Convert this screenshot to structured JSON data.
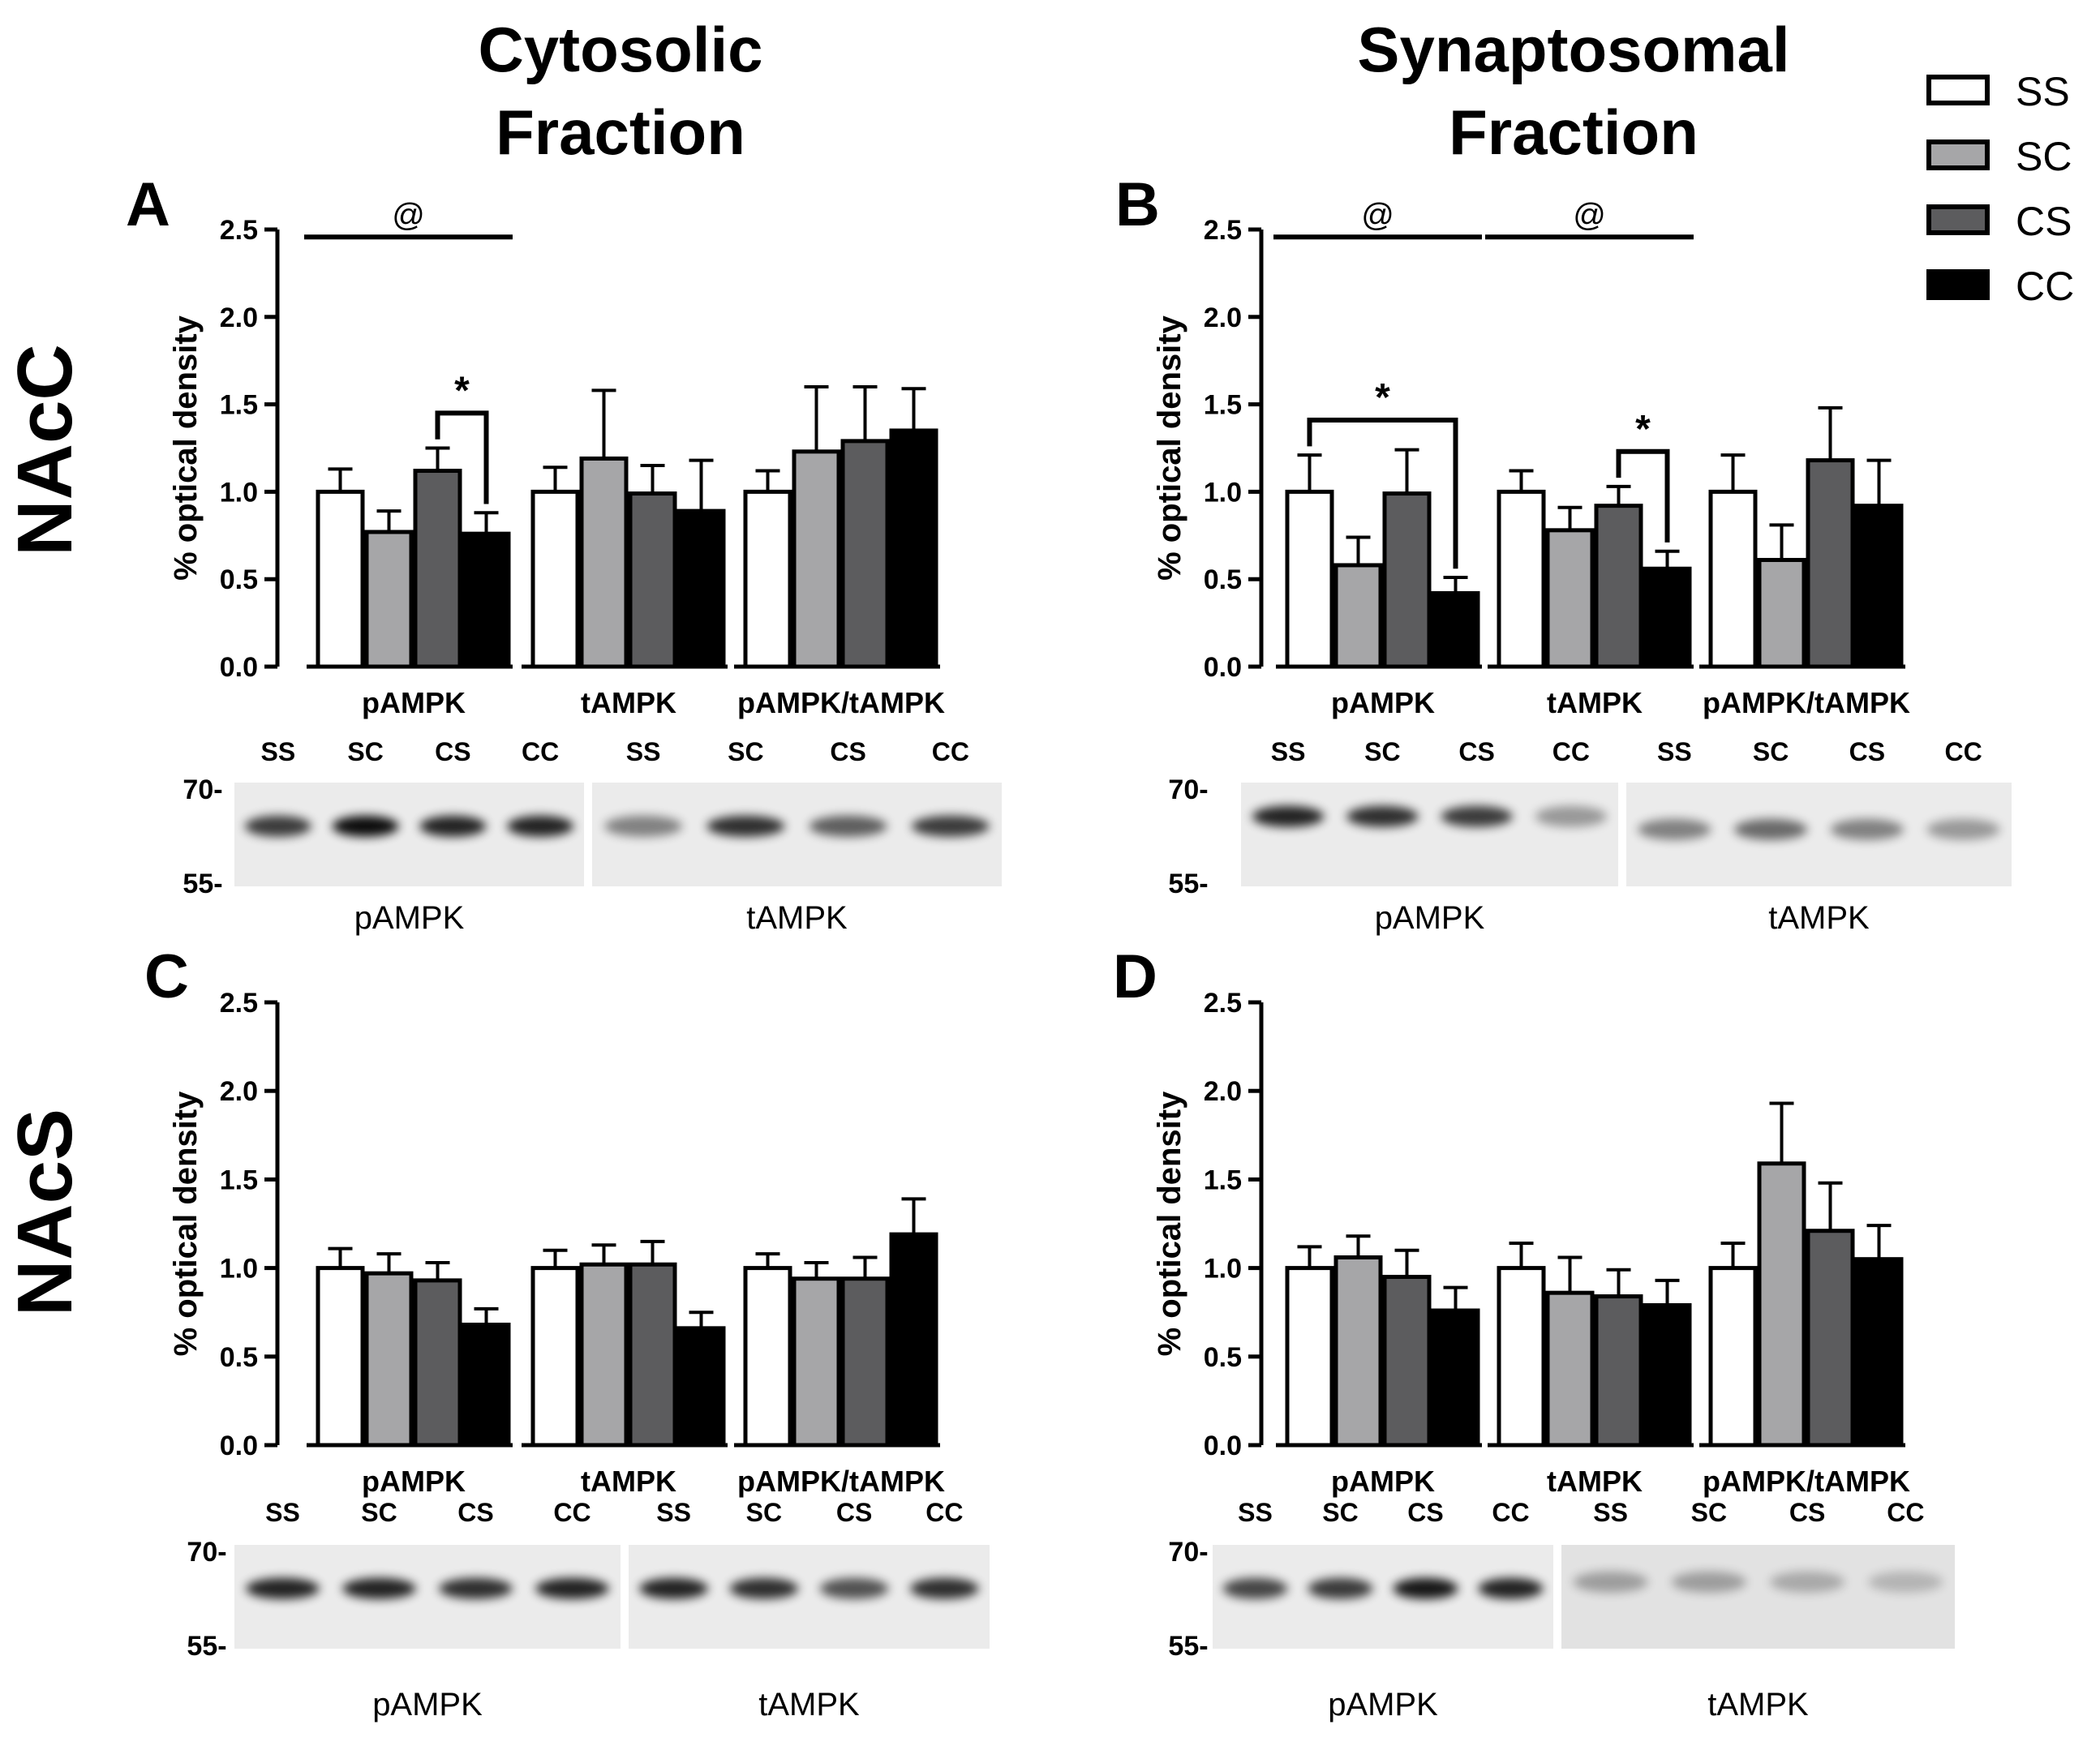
{
  "column_titles": [
    {
      "line1": "Cytosolic",
      "line2": "Fraction"
    },
    {
      "line1": "Synaptosomal",
      "line2": "Fraction"
    }
  ],
  "row_labels": [
    "NAcC",
    "NAcS"
  ],
  "legend": [
    {
      "label": "SS",
      "color": "#ffffff"
    },
    {
      "label": "SC",
      "color": "#a6a6a8"
    },
    {
      "label": "CS",
      "color": "#5c5c5e"
    },
    {
      "label": "CC",
      "color": "#000000"
    }
  ],
  "chart_data": [
    {
      "panel": "A",
      "type": "bar",
      "ylabel": "% optical density",
      "ylim": [
        0,
        2.5
      ],
      "yticks": [
        "0.0",
        "0.5",
        "1.0",
        "1.5",
        "2.0",
        "2.5"
      ],
      "categories": [
        "pAMPK",
        "tAMPK",
        "pAMPK/tAMPK"
      ],
      "series": [
        {
          "name": "SS",
          "values": [
            1.0,
            1.0,
            1.0
          ],
          "errors": [
            0.13,
            0.14,
            0.12
          ]
        },
        {
          "name": "SC",
          "values": [
            0.77,
            1.19,
            1.23
          ],
          "errors": [
            0.12,
            0.39,
            0.37
          ]
        },
        {
          "name": "CS",
          "values": [
            1.12,
            0.99,
            1.29
          ],
          "errors": [
            0.13,
            0.16,
            0.31
          ]
        },
        {
          "name": "CC",
          "values": [
            0.76,
            0.89,
            1.35
          ],
          "errors": [
            0.12,
            0.29,
            0.24
          ]
        }
      ],
      "annotations": [
        {
          "symbol": "@",
          "from_group": 0,
          "to_group": 0
        },
        {
          "symbol": "*",
          "group": 0,
          "from_series": 2,
          "to_series": 3
        }
      ],
      "blot": {
        "lanes_left": [
          "SS",
          "SC",
          "CS",
          "CC"
        ],
        "lanes_right": [
          "SS",
          "SC",
          "CS",
          "CC"
        ],
        "mw_top": "70-",
        "mw_bottom": "55-",
        "label_left": "pAMPK",
        "label_right": "tAMPK"
      }
    },
    {
      "panel": "B",
      "type": "bar",
      "ylabel": "% optical density",
      "ylim": [
        0,
        2.5
      ],
      "yticks": [
        "0.0",
        "0.5",
        "1.0",
        "1.5",
        "2.0",
        "2.5"
      ],
      "categories": [
        "pAMPK",
        "tAMPK",
        "pAMPK/tAMPK"
      ],
      "series": [
        {
          "name": "SS",
          "values": [
            1.0,
            1.0,
            1.0
          ],
          "errors": [
            0.21,
            0.12,
            0.21
          ]
        },
        {
          "name": "SC",
          "values": [
            0.58,
            0.78,
            0.61
          ],
          "errors": [
            0.16,
            0.13,
            0.2
          ]
        },
        {
          "name": "CS",
          "values": [
            0.99,
            0.92,
            1.18
          ],
          "errors": [
            0.25,
            0.11,
            0.3
          ]
        },
        {
          "name": "CC",
          "values": [
            0.42,
            0.56,
            0.92
          ],
          "errors": [
            0.09,
            0.1,
            0.26
          ]
        }
      ],
      "annotations": [
        {
          "symbol": "@",
          "from_group": 0,
          "to_group": 0
        },
        {
          "symbol": "@",
          "from_group": 1,
          "to_group": 1
        },
        {
          "symbol": "*",
          "group": 0,
          "from_series": 0,
          "to_series": 3
        },
        {
          "symbol": "*",
          "group": 1,
          "from_series": 2,
          "to_series": 3
        }
      ],
      "blot": {
        "lanes_left": [
          "SS",
          "SC",
          "CS",
          "CC"
        ],
        "lanes_right": [
          "SS",
          "SC",
          "CS",
          "CC"
        ],
        "mw_top": "70-",
        "mw_bottom": "55-",
        "label_left": "pAMPK",
        "label_right": "tAMPK"
      }
    },
    {
      "panel": "C",
      "type": "bar",
      "ylabel": "% optical density",
      "ylim": [
        0,
        2.5
      ],
      "yticks": [
        "0.0",
        "0.5",
        "1.0",
        "1.5",
        "2.0",
        "2.5"
      ],
      "categories": [
        "pAMPK",
        "tAMPK",
        "pAMPK/tAMPK"
      ],
      "series": [
        {
          "name": "SS",
          "values": [
            1.0,
            1.0,
            1.0
          ],
          "errors": [
            0.11,
            0.1,
            0.08
          ]
        },
        {
          "name": "SC",
          "values": [
            0.97,
            1.02,
            0.94
          ],
          "errors": [
            0.11,
            0.11,
            0.09
          ]
        },
        {
          "name": "CS",
          "values": [
            0.93,
            1.02,
            0.94
          ],
          "errors": [
            0.1,
            0.13,
            0.12
          ]
        },
        {
          "name": "CC",
          "values": [
            0.68,
            0.66,
            1.19
          ],
          "errors": [
            0.09,
            0.09,
            0.2
          ]
        }
      ],
      "annotations": [],
      "blot": {
        "lanes_left": [
          "SS",
          "SC",
          "CS",
          "CC"
        ],
        "lanes_right": [
          "SS",
          "SC",
          "CS",
          "CC"
        ],
        "mw_top": "70-",
        "mw_bottom": "55-",
        "label_left": "pAMPK",
        "label_right": "tAMPK"
      }
    },
    {
      "panel": "D",
      "type": "bar",
      "ylabel": "% optical density",
      "ylim": [
        0,
        2.5
      ],
      "yticks": [
        "0.0",
        "0.5",
        "1.0",
        "1.5",
        "2.0",
        "2.5"
      ],
      "categories": [
        "pAMPK",
        "tAMPK",
        "pAMPK/tAMPK"
      ],
      "series": [
        {
          "name": "SS",
          "values": [
            1.0,
            1.0,
            1.0
          ],
          "errors": [
            0.12,
            0.14,
            0.14
          ]
        },
        {
          "name": "SC",
          "values": [
            1.06,
            0.86,
            1.59
          ],
          "errors": [
            0.12,
            0.2,
            0.34
          ]
        },
        {
          "name": "CS",
          "values": [
            0.95,
            0.84,
            1.21
          ],
          "errors": [
            0.15,
            0.15,
            0.27
          ]
        },
        {
          "name": "CC",
          "values": [
            0.76,
            0.79,
            1.05
          ],
          "errors": [
            0.13,
            0.14,
            0.19
          ]
        }
      ],
      "annotations": [],
      "blot": {
        "lanes_left": [
          "SS",
          "SC",
          "CS",
          "CC"
        ],
        "lanes_right": [
          "SS",
          "SC",
          "CS",
          "CC"
        ],
        "mw_top": "70-",
        "mw_bottom": "55-",
        "label_left": "pAMPK",
        "label_right": "tAMPK"
      }
    }
  ]
}
